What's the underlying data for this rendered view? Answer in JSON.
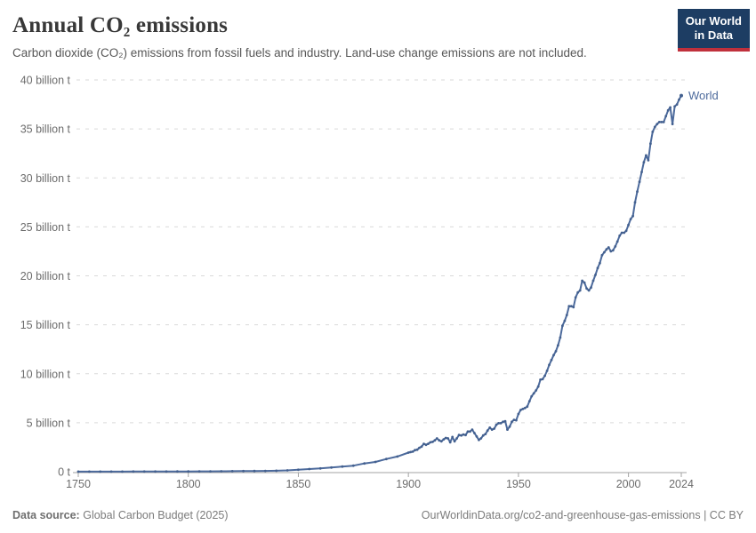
{
  "header": {
    "title": "Annual CO₂ emissions",
    "subtitle": "Carbon dioxide (CO₂) emissions from fossil fuels and industry. Land-use change emissions are not included.",
    "logo": {
      "line1": "Our World",
      "line2": "in Data"
    }
  },
  "colors": {
    "accent": "#4C6A9C",
    "marker": "#43608f",
    "grid": "#d9d9d9",
    "axis": "#a3a3a3",
    "tick_text": "#6c6c6c",
    "logo_bg": "#1d3d63",
    "logo_stripe": "#c0303c"
  },
  "chart_data": {
    "type": "line",
    "title": "Annual CO₂ emissions",
    "xlabel": "",
    "ylabel": "",
    "unit": "billion t",
    "grid": "horizontal-dashed",
    "legend": "end-of-line entity label",
    "xlim": [
      1750,
      2024
    ],
    "ylim": [
      0,
      40
    ],
    "xticks": [
      1750,
      1800,
      1850,
      1900,
      1950,
      2000,
      2024
    ],
    "xtick_labels": [
      "1750",
      "1800",
      "1850",
      "1900",
      "1950",
      "2000",
      "2024"
    ],
    "yticks": [
      0,
      5,
      10,
      15,
      20,
      25,
      30,
      35,
      40
    ],
    "ytick_labels": [
      "0 t",
      "5 billion t",
      "10 billion t",
      "15 billion t",
      "20 billion t",
      "25 billion t",
      "30 billion t",
      "35 billion t",
      "40 billion t"
    ],
    "series": [
      {
        "name": "World",
        "points": [
          [
            1750,
            0.01
          ],
          [
            1755,
            0.011
          ],
          [
            1760,
            0.011
          ],
          [
            1765,
            0.012
          ],
          [
            1770,
            0.013
          ],
          [
            1775,
            0.014
          ],
          [
            1780,
            0.016
          ],
          [
            1785,
            0.018
          ],
          [
            1790,
            0.02
          ],
          [
            1795,
            0.025
          ],
          [
            1800,
            0.03
          ],
          [
            1805,
            0.033
          ],
          [
            1810,
            0.04
          ],
          [
            1815,
            0.045
          ],
          [
            1820,
            0.052
          ],
          [
            1825,
            0.06
          ],
          [
            1830,
            0.07
          ],
          [
            1835,
            0.083
          ],
          [
            1840,
            0.098
          ],
          [
            1845,
            0.14
          ],
          [
            1850,
            0.2
          ],
          [
            1855,
            0.27
          ],
          [
            1860,
            0.34
          ],
          [
            1865,
            0.43
          ],
          [
            1870,
            0.53
          ],
          [
            1875,
            0.62
          ],
          [
            1880,
            0.84
          ],
          [
            1885,
            1.0
          ],
          [
            1890,
            1.3
          ],
          [
            1895,
            1.55
          ],
          [
            1900,
            1.95
          ],
          [
            1901,
            2.0
          ],
          [
            1902,
            2.05
          ],
          [
            1903,
            2.2
          ],
          [
            1904,
            2.25
          ],
          [
            1905,
            2.44
          ],
          [
            1906,
            2.56
          ],
          [
            1907,
            2.85
          ],
          [
            1908,
            2.75
          ],
          [
            1909,
            2.85
          ],
          [
            1910,
            3.0
          ],
          [
            1911,
            3.05
          ],
          [
            1912,
            3.2
          ],
          [
            1913,
            3.4
          ],
          [
            1914,
            3.2
          ],
          [
            1915,
            3.1
          ],
          [
            1916,
            3.3
          ],
          [
            1917,
            3.45
          ],
          [
            1918,
            3.4
          ],
          [
            1919,
            3.0
          ],
          [
            1920,
            3.55
          ],
          [
            1921,
            3.1
          ],
          [
            1922,
            3.4
          ],
          [
            1923,
            3.75
          ],
          [
            1924,
            3.7
          ],
          [
            1925,
            3.8
          ],
          [
            1926,
            3.75
          ],
          [
            1927,
            4.1
          ],
          [
            1928,
            4.1
          ],
          [
            1929,
            4.3
          ],
          [
            1930,
            3.95
          ],
          [
            1931,
            3.6
          ],
          [
            1932,
            3.25
          ],
          [
            1933,
            3.4
          ],
          [
            1934,
            3.7
          ],
          [
            1935,
            3.85
          ],
          [
            1936,
            4.2
          ],
          [
            1937,
            4.5
          ],
          [
            1938,
            4.3
          ],
          [
            1939,
            4.4
          ],
          [
            1940,
            4.8
          ],
          [
            1941,
            4.95
          ],
          [
            1942,
            4.95
          ],
          [
            1943,
            5.1
          ],
          [
            1944,
            5.15
          ],
          [
            1945,
            4.3
          ],
          [
            1946,
            4.6
          ],
          [
            1947,
            5.1
          ],
          [
            1948,
            5.3
          ],
          [
            1949,
            5.25
          ],
          [
            1950,
            5.9
          ],
          [
            1951,
            6.3
          ],
          [
            1952,
            6.4
          ],
          [
            1953,
            6.5
          ],
          [
            1954,
            6.65
          ],
          [
            1955,
            7.2
          ],
          [
            1956,
            7.7
          ],
          [
            1957,
            8.0
          ],
          [
            1958,
            8.3
          ],
          [
            1959,
            8.7
          ],
          [
            1960,
            9.4
          ],
          [
            1961,
            9.45
          ],
          [
            1962,
            9.8
          ],
          [
            1963,
            10.3
          ],
          [
            1964,
            10.9
          ],
          [
            1965,
            11.4
          ],
          [
            1966,
            11.9
          ],
          [
            1967,
            12.3
          ],
          [
            1968,
            12.9
          ],
          [
            1969,
            13.7
          ],
          [
            1970,
            14.9
          ],
          [
            1971,
            15.4
          ],
          [
            1972,
            16.0
          ],
          [
            1973,
            16.9
          ],
          [
            1974,
            16.9
          ],
          [
            1975,
            16.8
          ],
          [
            1976,
            17.8
          ],
          [
            1977,
            18.3
          ],
          [
            1978,
            18.5
          ],
          [
            1979,
            19.5
          ],
          [
            1980,
            19.3
          ],
          [
            1981,
            18.7
          ],
          [
            1982,
            18.5
          ],
          [
            1983,
            18.8
          ],
          [
            1984,
            19.5
          ],
          [
            1985,
            20.1
          ],
          [
            1986,
            20.8
          ],
          [
            1987,
            21.3
          ],
          [
            1988,
            22.1
          ],
          [
            1989,
            22.4
          ],
          [
            1990,
            22.7
          ],
          [
            1991,
            22.9
          ],
          [
            1992,
            22.5
          ],
          [
            1993,
            22.6
          ],
          [
            1994,
            23.0
          ],
          [
            1995,
            23.5
          ],
          [
            1996,
            24.1
          ],
          [
            1997,
            24.4
          ],
          [
            1998,
            24.4
          ],
          [
            1999,
            24.6
          ],
          [
            2000,
            25.2
          ],
          [
            2001,
            25.8
          ],
          [
            2002,
            26.1
          ],
          [
            2003,
            27.5
          ],
          [
            2004,
            28.6
          ],
          [
            2005,
            29.6
          ],
          [
            2006,
            30.6
          ],
          [
            2007,
            31.6
          ],
          [
            2008,
            32.3
          ],
          [
            2009,
            31.8
          ],
          [
            2010,
            33.5
          ],
          [
            2011,
            34.7
          ],
          [
            2012,
            35.2
          ],
          [
            2013,
            35.5
          ],
          [
            2014,
            35.7
          ],
          [
            2015,
            35.7
          ],
          [
            2016,
            35.7
          ],
          [
            2017,
            36.3
          ],
          [
            2018,
            36.9
          ],
          [
            2019,
            37.2
          ],
          [
            2020,
            35.5
          ],
          [
            2021,
            37.3
          ],
          [
            2022,
            37.5
          ],
          [
            2023,
            38.0
          ],
          [
            2024,
            38.4
          ]
        ]
      }
    ],
    "entity_label": "World"
  },
  "footer": {
    "source_label": "Data source:",
    "source_value": "Global Carbon Budget (2025)",
    "url": "OurWorldinData.org/co2-and-greenhouse-gas-emissions",
    "separator": "|",
    "license": "CC BY"
  }
}
